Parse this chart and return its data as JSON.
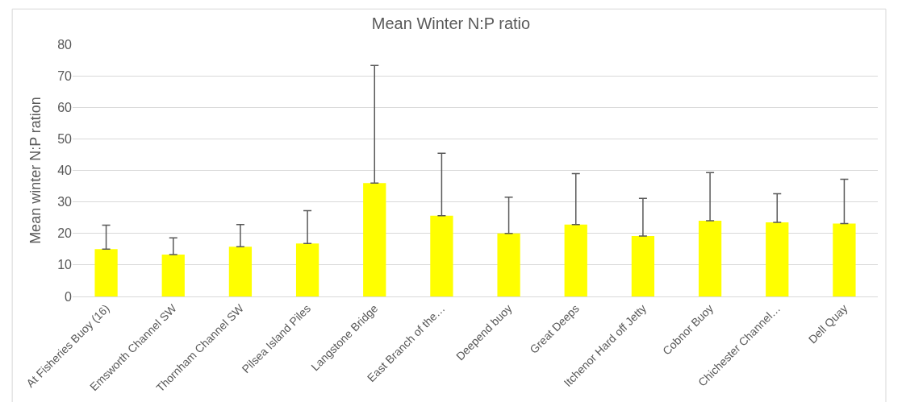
{
  "chart_data": {
    "type": "bar",
    "title": "Mean Winter N:P ratio",
    "ylabel": "Mean winter N:P ration",
    "categories": [
      "At Fisheries Buoy (16)",
      "Emsworth Channel SW",
      "Thornham Channel SW",
      "Pilsea Island Piles",
      "Langstone Bridge",
      "East Branch of the…",
      "Deepend buoy",
      "Great Deeps",
      "Itchenor Hard off Jetty",
      "Cobnor Buoy",
      "Chichester Channel…",
      "Dell Quay"
    ],
    "values": [
      15,
      13.3,
      15.8,
      16.8,
      36,
      25.6,
      20,
      22.8,
      19.2,
      24,
      23.5,
      23.1
    ],
    "errors": [
      [
        15,
        22.6
      ],
      [
        13.3,
        18.6
      ],
      [
        15.8,
        22.8
      ],
      [
        16.8,
        27.2
      ],
      [
        36,
        73.3
      ],
      [
        25.6,
        45.4
      ],
      [
        20,
        31.5
      ],
      [
        22.8,
        39
      ],
      [
        19.2,
        31.1
      ],
      [
        24,
        39.3
      ],
      [
        23.5,
        32.6
      ],
      [
        23.1,
        37.2
      ]
    ],
    "color": "#ffff00",
    "ylim": [
      0,
      80
    ],
    "yticks": [
      0,
      10,
      20,
      30,
      40,
      50,
      60,
      70,
      80
    ],
    "grid": "y"
  }
}
